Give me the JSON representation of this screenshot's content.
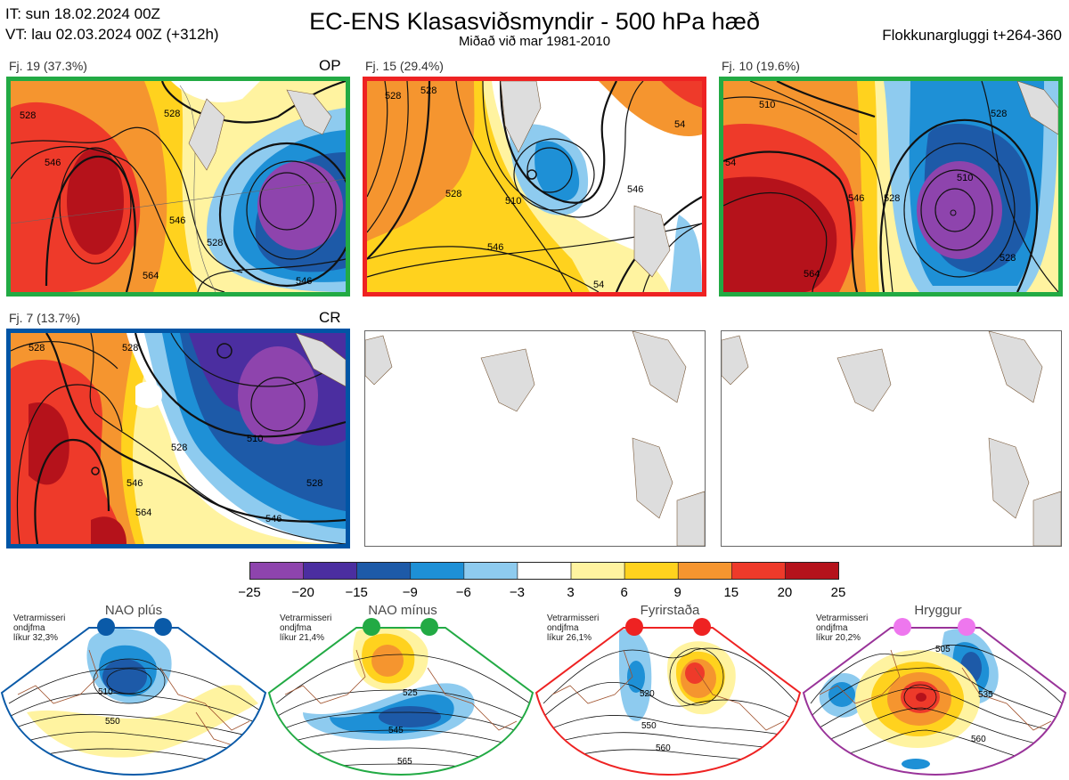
{
  "header": {
    "it_line": "IT: sun 18.02.2024 00Z",
    "vt_line": "VT: lau 02.03.2024 00Z  (+312h)",
    "title": "EC-ENS Klasasviðsmyndir - 500 hPa hæð",
    "subtitle": "Miðað við mar 1981-2010",
    "window": "Flokkunargluggi t+264-360"
  },
  "panels": [
    {
      "label": "Fj. 19 (37.3%)",
      "tag": "OP",
      "border": "#22aa44",
      "contours": [
        "528",
        "528",
        "546",
        "546",
        "528",
        "546",
        "564",
        "546"
      ]
    },
    {
      "label": "Fj. 15 (29.4%)",
      "tag": "",
      "border": "#ee2222",
      "contours": [
        "528",
        "528",
        "510",
        "528",
        "546",
        "546",
        "54",
        "54"
      ]
    },
    {
      "label": "Fj. 10 (19.6%)",
      "tag": "",
      "border": "#22aa44",
      "contours": [
        "54",
        "510",
        "528",
        "546",
        "564",
        "528",
        "510",
        "528"
      ]
    },
    {
      "label": "Fj. 7 (13.7%)",
      "tag": "CR",
      "border": "#0055a5",
      "contours": [
        "528",
        "528",
        "510",
        "528",
        "546",
        "564",
        "546",
        "528"
      ]
    }
  ],
  "colorbar": {
    "colors": [
      "#8e44ad",
      "#4b2ea0",
      "#1d5aa8",
      "#1e90d6",
      "#8ecbef",
      "#ffffff",
      "#fff3a0",
      "#ffd21e",
      "#f5952f",
      "#ee3a2a",
      "#b5121b"
    ],
    "labels": [
      "−25",
      "−20",
      "−15",
      "−9",
      "−6",
      "−3",
      "3",
      "6",
      "9",
      "15",
      "20",
      "25"
    ]
  },
  "regimes": [
    {
      "title": "NAO plús",
      "info": [
        "Vetrarmisseri",
        "ondjfma",
        "líkur 32,3%"
      ],
      "color": "#0a5aa8",
      "contours": [
        "510",
        "550"
      ]
    },
    {
      "title": "NAO mínus",
      "info": [
        "Vetrarmisseri",
        "ondjfma",
        "líkur 21,4%"
      ],
      "color": "#22aa44",
      "contours": [
        "525",
        "545",
        "565"
      ]
    },
    {
      "title": "Fyrirstaða",
      "info": [
        "Vetrarmisseri",
        "ondjfma",
        "líkur 26,1%"
      ],
      "color": "#ee2222",
      "contours": [
        "520",
        "550",
        "560"
      ]
    },
    {
      "title": "Hryggur",
      "info": [
        "Vetrarmisseri",
        "ondjfma",
        "líkur 20,2%"
      ],
      "color": "#dd66dd",
      "contours": [
        "505",
        "535",
        "560"
      ]
    }
  ]
}
